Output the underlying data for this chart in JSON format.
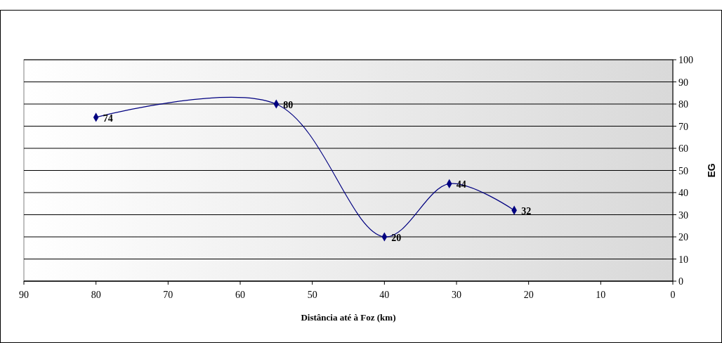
{
  "chart_data": {
    "type": "line",
    "xlabel": "Distância até à Foz (km)",
    "ylabel": "EG",
    "x": [
      80,
      55,
      40,
      31,
      22
    ],
    "series": [
      {
        "color": "#000080",
        "values": [
          74,
          80,
          20,
          44,
          32
        ]
      }
    ],
    "xlim": [
      90,
      0
    ],
    "xticks": [
      90,
      80,
      70,
      60,
      50,
      40,
      30,
      20,
      10,
      0
    ],
    "ylim": [
      0,
      100
    ],
    "yticks": [
      0,
      10,
      20,
      30,
      40,
      50,
      60,
      70,
      80,
      90,
      100
    ],
    "grid": "y",
    "marker": "diamond",
    "line_style": "solid",
    "data_labels": true
  }
}
